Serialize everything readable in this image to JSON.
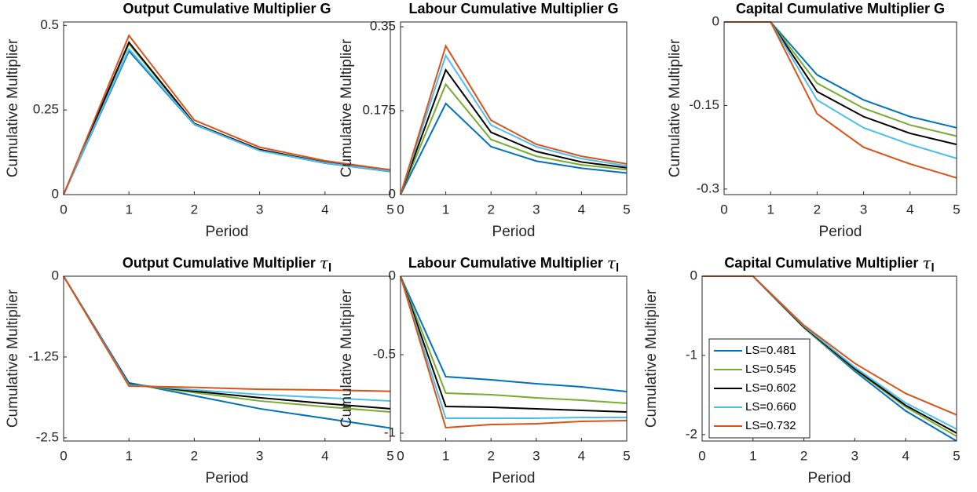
{
  "chart_data": [
    {
      "type": "line",
      "title": "Output Cumulative Multiplier G",
      "x_label": "Period",
      "y_label": "Cumulative Multiplier",
      "x": [
        0,
        1,
        2,
        3,
        4,
        5
      ],
      "xlim": [
        0,
        5
      ],
      "xticks": [
        0,
        1,
        2,
        3,
        4,
        5
      ],
      "ylim": [
        0,
        0.51
      ],
      "yticks": [
        0,
        0.25,
        0.5
      ],
      "series": [
        {
          "color": "#0072bd",
          "values": [
            0,
            0.424,
            0.207,
            0.13,
            0.093,
            0.068
          ]
        },
        {
          "color": "#77ac30",
          "values": [
            0,
            0.445,
            0.21,
            0.133,
            0.095,
            0.07
          ]
        },
        {
          "color": "#000000",
          "values": [
            0,
            0.45,
            0.21,
            0.133,
            0.095,
            0.07
          ]
        },
        {
          "color": "#4dbeee",
          "values": [
            0,
            0.43,
            0.208,
            0.13,
            0.094,
            0.069
          ]
        },
        {
          "color": "#d95319",
          "values": [
            0,
            0.47,
            0.22,
            0.14,
            0.1,
            0.073
          ]
        }
      ]
    },
    {
      "type": "line",
      "title": "Labour Cumulative Multiplier G",
      "x_label": "Period",
      "y_label": "Cumulative Multiplier",
      "x": [
        0,
        1,
        2,
        3,
        4,
        5
      ],
      "xlim": [
        0,
        5
      ],
      "xticks": [
        0,
        1,
        2,
        3,
        4,
        5
      ],
      "ylim": [
        0,
        0.36
      ],
      "yticks": [
        0,
        0.175,
        0.35
      ],
      "series": [
        {
          "color": "#0072bd",
          "values": [
            0,
            0.19,
            0.1,
            0.07,
            0.055,
            0.045
          ]
        },
        {
          "color": "#77ac30",
          "values": [
            0,
            0.23,
            0.115,
            0.08,
            0.062,
            0.052
          ]
        },
        {
          "color": "#000000",
          "values": [
            0,
            0.26,
            0.13,
            0.09,
            0.068,
            0.056
          ]
        },
        {
          "color": "#4dbeee",
          "values": [
            0,
            0.29,
            0.145,
            0.1,
            0.075,
            0.06
          ]
        },
        {
          "color": "#d95319",
          "values": [
            0,
            0.31,
            0.155,
            0.105,
            0.08,
            0.064
          ]
        }
      ]
    },
    {
      "type": "line",
      "title": "Capital Cumulative Multiplier G",
      "x_label": "Period",
      "y_label": "Cumulative Multiplier",
      "x": [
        0,
        1,
        2,
        3,
        4,
        5
      ],
      "xlim": [
        0,
        5
      ],
      "xticks": [
        0,
        1,
        2,
        3,
        4,
        5
      ],
      "ylim": [
        -0.31,
        0
      ],
      "yticks": [
        -0.3,
        -0.15,
        0
      ],
      "series": [
        {
          "color": "#0072bd",
          "values": [
            0,
            0,
            -0.095,
            -0.14,
            -0.17,
            -0.19
          ]
        },
        {
          "color": "#77ac30",
          "values": [
            0,
            0,
            -0.11,
            -0.155,
            -0.185,
            -0.205
          ]
        },
        {
          "color": "#000000",
          "values": [
            0,
            0,
            -0.125,
            -0.17,
            -0.2,
            -0.22
          ]
        },
        {
          "color": "#4dbeee",
          "values": [
            0,
            0,
            -0.14,
            -0.19,
            -0.22,
            -0.245
          ]
        },
        {
          "color": "#d95319",
          "values": [
            0,
            0,
            -0.165,
            -0.225,
            -0.255,
            -0.28
          ]
        }
      ]
    },
    {
      "type": "line",
      "title": "Output Cumulative Multiplier",
      "title_symbol": "τ",
      "title_subscript": "l",
      "x_label": "Period",
      "y_label": "Cumulative Multiplier",
      "x": [
        0,
        1,
        2,
        3,
        4,
        5
      ],
      "xlim": [
        0,
        5
      ],
      "xticks": [
        0,
        1,
        2,
        3,
        4,
        5
      ],
      "ylim": [
        -2.55,
        0
      ],
      "yticks": [
        -2.5,
        -1.25,
        0
      ],
      "series": [
        {
          "color": "#0072bd",
          "values": [
            0,
            -1.65,
            -1.85,
            -2.05,
            -2.2,
            -2.35
          ]
        },
        {
          "color": "#77ac30",
          "values": [
            0,
            -1.67,
            -1.8,
            -1.93,
            -2.02,
            -2.1
          ]
        },
        {
          "color": "#000000",
          "values": [
            0,
            -1.67,
            -1.78,
            -1.88,
            -1.97,
            -2.05
          ]
        },
        {
          "color": "#4dbeee",
          "values": [
            0,
            -1.68,
            -1.76,
            -1.83,
            -1.88,
            -1.93
          ]
        },
        {
          "color": "#d95319",
          "values": [
            0,
            -1.7,
            -1.72,
            -1.75,
            -1.76,
            -1.78
          ]
        }
      ]
    },
    {
      "type": "line",
      "title": "Labour Cumulative Multiplier",
      "title_symbol": "τ",
      "title_subscript": "l",
      "x_label": "Period",
      "y_label": "Cumulative Multiplier",
      "x": [
        0,
        1,
        2,
        3,
        4,
        5
      ],
      "xlim": [
        0,
        5
      ],
      "xticks": [
        0,
        1,
        2,
        3,
        4,
        5
      ],
      "ylim": [
        -1.05,
        0
      ],
      "yticks": [
        -1,
        -0.5,
        0
      ],
      "series": [
        {
          "color": "#0072bd",
          "values": [
            0,
            -0.64,
            -0.66,
            -0.685,
            -0.705,
            -0.735
          ]
        },
        {
          "color": "#77ac30",
          "values": [
            0,
            -0.745,
            -0.755,
            -0.775,
            -0.79,
            -0.81
          ]
        },
        {
          "color": "#000000",
          "values": [
            0,
            -0.83,
            -0.835,
            -0.845,
            -0.855,
            -0.865
          ]
        },
        {
          "color": "#4dbeee",
          "values": [
            0,
            -0.905,
            -0.905,
            -0.905,
            -0.9,
            -0.9
          ]
        },
        {
          "color": "#d95319",
          "values": [
            0,
            -0.965,
            -0.945,
            -0.94,
            -0.925,
            -0.92
          ]
        }
      ]
    },
    {
      "type": "line",
      "title": "Capital Cumulative Multiplier",
      "title_symbol": "τ",
      "title_subscript": "l",
      "x_label": "Period",
      "y_label": "Cumulative Multiplier",
      "x": [
        0,
        1,
        2,
        3,
        4,
        5
      ],
      "xlim": [
        0,
        5
      ],
      "xticks": [
        0,
        1,
        2,
        3,
        4,
        5
      ],
      "ylim": [
        -2.08,
        0
      ],
      "yticks": [
        -2,
        -1,
        0
      ],
      "legend": "lower left",
      "series": [
        {
          "name": "LS=0.481",
          "color": "#0072bd",
          "values": [
            0,
            0,
            -0.65,
            -1.2,
            -1.7,
            -2.08
          ]
        },
        {
          "name": "LS=0.545",
          "color": "#77ac30",
          "values": [
            0,
            0,
            -0.65,
            -1.18,
            -1.65,
            -2.02
          ]
        },
        {
          "name": "LS=0.602",
          "color": "#000000",
          "values": [
            0,
            0,
            -0.64,
            -1.17,
            -1.63,
            -1.98
          ]
        },
        {
          "name": "LS=0.660",
          "color": "#4dbeee",
          "values": [
            0,
            0,
            -0.63,
            -1.15,
            -1.6,
            -1.93
          ]
        },
        {
          "name": "LS=0.732",
          "color": "#d95319",
          "values": [
            0,
            0,
            -0.62,
            -1.1,
            -1.48,
            -1.75
          ]
        }
      ]
    }
  ]
}
